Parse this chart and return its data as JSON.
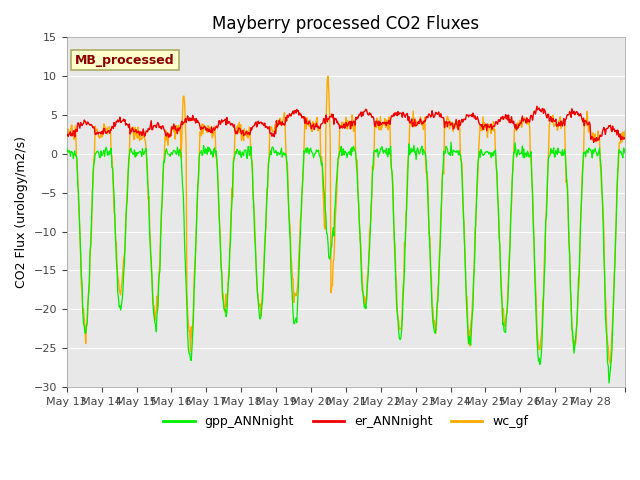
{
  "title": "Mayberry processed CO2 Fluxes",
  "ylabel": "CO2 Flux (urology/m2/s)",
  "ylim": [
    -30,
    15
  ],
  "yticks": [
    -30,
    -25,
    -20,
    -15,
    -10,
    -5,
    0,
    5,
    10,
    15
  ],
  "background_color": "#ffffff",
  "plot_bg_color": "#e8e8e8",
  "legend_label": "MB_processed",
  "legend_text_color": "#8b0000",
  "legend_box_color": "#ffffcc",
  "line_colors": {
    "gpp": "#00ee00",
    "er": "#ee0000",
    "wc": "#ffaa00"
  },
  "x_tick_labels": [
    "May 13",
    "May 14",
    "May 15",
    "May 16",
    "May 17",
    "May 18",
    "May 19",
    "May 20",
    "May 21",
    "May 22",
    "May 23",
    "May 24",
    "May 25",
    "May 26",
    "May 27",
    "May 28"
  ],
  "n_days": 16,
  "points_per_day": 48
}
